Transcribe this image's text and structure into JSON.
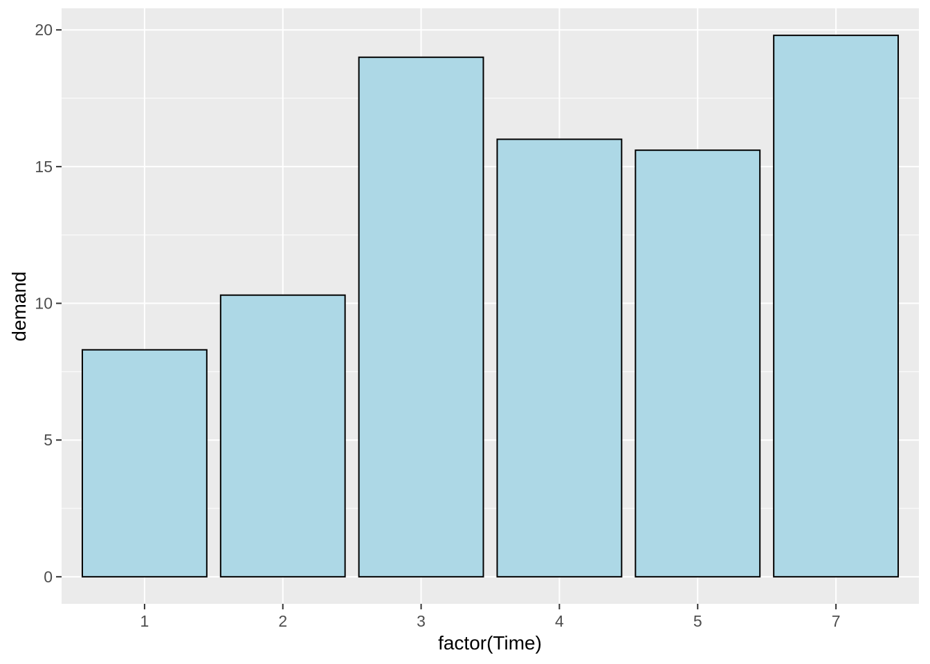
{
  "chart_data": {
    "type": "bar",
    "title": "",
    "xlabel": "factor(Time)",
    "ylabel": "demand",
    "categories": [
      "1",
      "2",
      "3",
      "4",
      "5",
      "7"
    ],
    "values": [
      8.3,
      10.3,
      19.0,
      16.0,
      15.6,
      19.8
    ],
    "series_name": "demand",
    "y_major_ticks": [
      0,
      5,
      10,
      15,
      20
    ],
    "y_minor_ticks": [
      2.5,
      7.5,
      12.5,
      17.5
    ],
    "ylim": [
      -0.99,
      20.79
    ],
    "grid": true,
    "legend_position": "none",
    "style": "ggplot2-theme-grey",
    "colors": {
      "bar_fill": "#ADD8E6",
      "bar_stroke": "#000000",
      "panel_background": "#EBEBEB",
      "figure_background": "#FFFFFF",
      "grid_color": "#FFFFFF",
      "tick_mark_color": "#333333",
      "tick_label_color": "#4D4D4D",
      "axis_title_color": "#000000"
    }
  }
}
